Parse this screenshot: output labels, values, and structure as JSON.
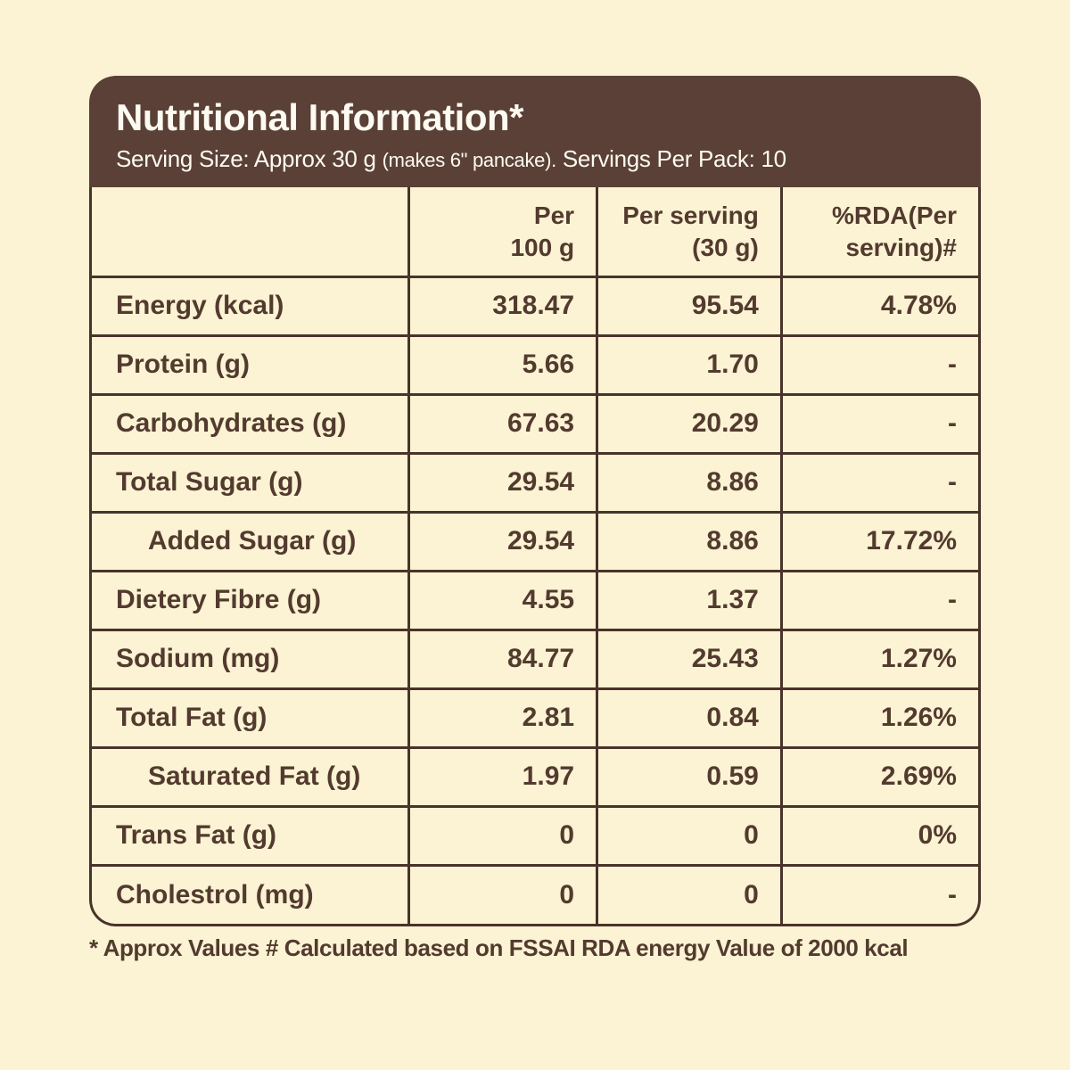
{
  "colors": {
    "background": "#FBF3D3",
    "header_bg": "#5A4036",
    "border": "#4A332A",
    "text": "#533A2F",
    "header_text": "#FDFAF1"
  },
  "header": {
    "title": "Nutritional Information*",
    "subtitle_prefix": "Serving Size: Approx 30 g ",
    "subtitle_small": "(makes 6\" pancake).",
    "subtitle_suffix": " Servings Per Pack: 10"
  },
  "table": {
    "columns": [
      {
        "line1": "Per",
        "line2": "100 g"
      },
      {
        "line1": "Per serving",
        "line2": "(30 g)"
      },
      {
        "line1": "%RDA(Per",
        "line2": "serving)#"
      }
    ],
    "rows": [
      {
        "label": "Energy (kcal)",
        "indent": false,
        "per_100g": "318.47",
        "per_serving": "95.54",
        "rda_percent": "4.78%"
      },
      {
        "label": "Protein (g)",
        "indent": false,
        "per_100g": "5.66",
        "per_serving": "1.70",
        "rda_percent": "-"
      },
      {
        "label": "Carbohydrates (g)",
        "indent": false,
        "per_100g": "67.63",
        "per_serving": "20.29",
        "rda_percent": "-"
      },
      {
        "label": "Total Sugar (g)",
        "indent": false,
        "per_100g": "29.54",
        "per_serving": "8.86",
        "rda_percent": "-"
      },
      {
        "label": "Added Sugar (g)",
        "indent": true,
        "per_100g": "29.54",
        "per_serving": "8.86",
        "rda_percent": "17.72%"
      },
      {
        "label": "Dietery Fibre (g)",
        "indent": false,
        "per_100g": "4.55",
        "per_serving": "1.37",
        "rda_percent": "-"
      },
      {
        "label": "Sodium (mg)",
        "indent": false,
        "per_100g": "84.77",
        "per_serving": "25.43",
        "rda_percent": "1.27%"
      },
      {
        "label": "Total Fat (g)",
        "indent": false,
        "per_100g": "2.81",
        "per_serving": "0.84",
        "rda_percent": "1.26%"
      },
      {
        "label": "Saturated Fat (g)",
        "indent": true,
        "per_100g": "1.97",
        "per_serving": "0.59",
        "rda_percent": "2.69%"
      },
      {
        "label": "Trans Fat (g)",
        "indent": false,
        "per_100g": "0",
        "per_serving": "0",
        "rda_percent": "0%"
      },
      {
        "label": "Cholestrol (mg)",
        "indent": false,
        "per_100g": "0",
        "per_serving": "0",
        "rda_percent": "-"
      }
    ]
  },
  "footnote": "* Approx Values # Calculated based on FSSAI RDA energy Value of 2000 kcal"
}
